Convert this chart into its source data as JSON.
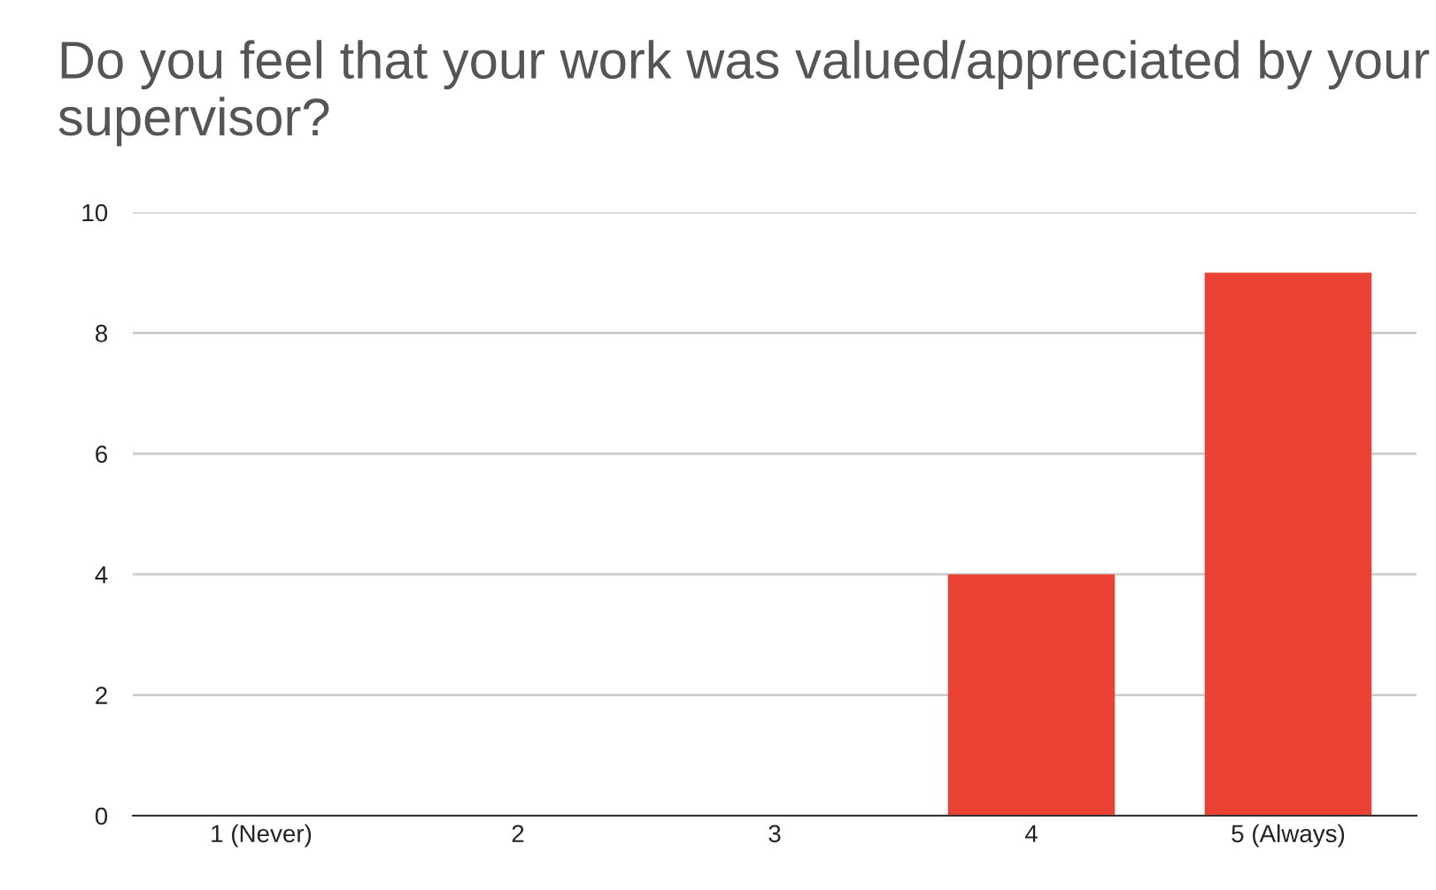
{
  "chart_data": {
    "type": "bar",
    "title": "Do you feel that your work was valued/appreciated by your supervisor?",
    "categories": [
      "1 (Never)",
      "2",
      "3",
      "4",
      "5 (Always)"
    ],
    "values": [
      0,
      0,
      0,
      4,
      9
    ],
    "color": "#ea4335",
    "ylim": [
      0,
      10
    ],
    "yticks": [
      0,
      2,
      4,
      6,
      8,
      10
    ],
    "grid": "y",
    "legend": false
  }
}
